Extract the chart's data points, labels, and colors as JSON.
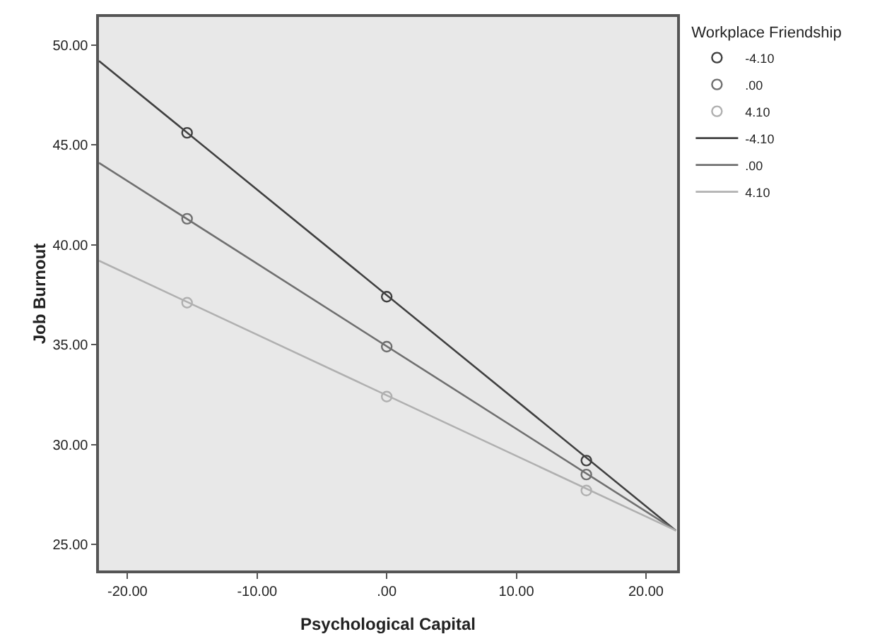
{
  "chart_data": {
    "type": "line",
    "xlabel": "Psychological Capital",
    "ylabel": "Job Burnout",
    "legend_title": "Workplace Friendship",
    "legend": "top right",
    "grid": false,
    "xlim": [
      -22.2,
      22.4
    ],
    "ylim": [
      23.7,
      51.4
    ],
    "xticks": [
      {
        "value": -20,
        "label": "-20.00"
      },
      {
        "value": -10,
        "label": "-10.00"
      },
      {
        "value": 0,
        "label": ".00"
      },
      {
        "value": 10,
        "label": "10.00"
      },
      {
        "value": 20,
        "label": "20.00"
      }
    ],
    "yticks": [
      {
        "value": 25,
        "label": "25.00"
      },
      {
        "value": 30,
        "label": "30.00"
      },
      {
        "value": 35,
        "label": "35.00"
      },
      {
        "value": 40,
        "label": "40.00"
      },
      {
        "value": 45,
        "label": "45.00"
      },
      {
        "value": 50,
        "label": "50.00"
      }
    ],
    "series": [
      {
        "name": "-4.10",
        "type": "scatter",
        "marker": "circle",
        "color": "#404040",
        "x": [
          -15.4,
          0,
          15.4
        ],
        "values": [
          45.6,
          37.4,
          29.2
        ]
      },
      {
        "name": ".00",
        "type": "scatter",
        "marker": "circle",
        "color": "#707070",
        "x": [
          -15.4,
          0,
          15.4
        ],
        "values": [
          41.3,
          34.9,
          28.5
        ]
      },
      {
        "name": "4.10",
        "type": "scatter",
        "marker": "circle",
        "color": "#b0b0b0",
        "x": [
          -15.4,
          0,
          15.4
        ],
        "values": [
          37.1,
          32.4,
          27.7
        ]
      },
      {
        "name": "-4.10",
        "color": "#404040",
        "x": [
          -22.2,
          22.3
        ],
        "values": [
          49.2,
          25.7
        ]
      },
      {
        "name": ".00",
        "color": "#707070",
        "x": [
          -22.2,
          22.3
        ],
        "values": [
          44.1,
          25.7
        ]
      },
      {
        "name": "4.10",
        "color": "#b0b0b0",
        "x": [
          -22.2,
          22.3
        ],
        "values": [
          39.2,
          25.7
        ]
      }
    ]
  }
}
